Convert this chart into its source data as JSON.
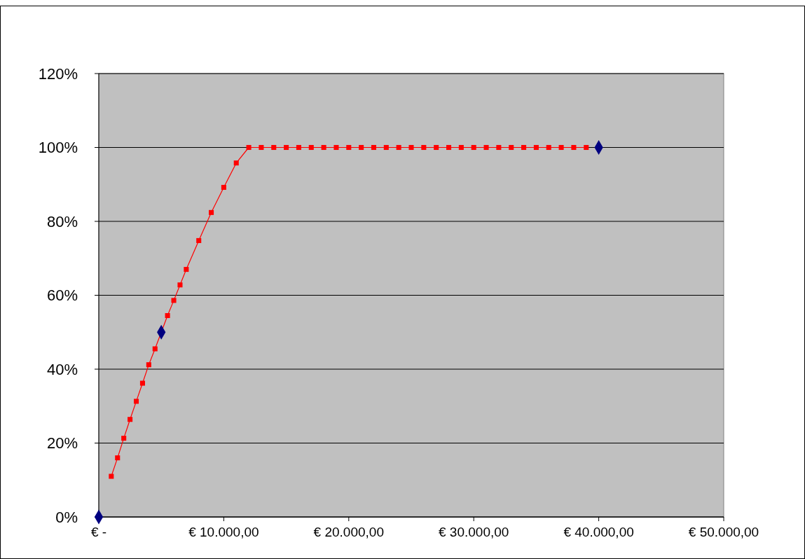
{
  "chart_data": {
    "type": "line",
    "xlim": [
      0,
      50000
    ],
    "ylim": [
      0,
      120
    ],
    "xticks": [
      {
        "value": 0,
        "label": "€ -"
      },
      {
        "value": 10000,
        "label": "€ 10.000,00"
      },
      {
        "value": 20000,
        "label": "€ 20.000,00"
      },
      {
        "value": 30000,
        "label": "€ 30.000,00"
      },
      {
        "value": 40000,
        "label": "€ 40.000,00"
      },
      {
        "value": 50000,
        "label": "€ 50.000,00"
      }
    ],
    "yticks": [
      {
        "value": 0,
        "label": "0%"
      },
      {
        "value": 20,
        "label": "20%"
      },
      {
        "value": 40,
        "label": "40%"
      },
      {
        "value": 60,
        "label": "60%"
      },
      {
        "value": 80,
        "label": "80%"
      },
      {
        "value": 100,
        "label": "100%"
      },
      {
        "value": 120,
        "label": "120%"
      }
    ],
    "grid": "y",
    "series": [
      {
        "color": "#ff0000",
        "marker": "square",
        "x": [
          1000,
          1500,
          2000,
          2500,
          3000,
          3500,
          4000,
          4500,
          5500,
          6000,
          6500,
          7000,
          8000,
          9000,
          10000,
          11000,
          12000,
          13000,
          14000,
          15000,
          16000,
          17000,
          18000,
          19000,
          20000,
          21000,
          22000,
          23000,
          24000,
          25000,
          26000,
          27000,
          28000,
          29000,
          30000,
          31000,
          32000,
          33000,
          34000,
          35000,
          36000,
          37000,
          38000,
          39000
        ],
        "values": [
          11,
          16,
          21.3,
          26.4,
          31.3,
          36.2,
          41.2,
          45.5,
          54.5,
          58.6,
          62.8,
          67,
          74.8,
          82.4,
          89.2,
          95.8,
          100,
          100,
          100,
          100,
          100,
          100,
          100,
          100,
          100,
          100,
          100,
          100,
          100,
          100,
          100,
          100,
          100,
          100,
          100,
          100,
          100,
          100,
          100,
          100,
          100,
          100,
          100,
          100
        ]
      },
      {
        "type": "scatter",
        "color": "#000080",
        "marker": "diamond",
        "x": [
          0,
          5000,
          40000
        ],
        "values": [
          0,
          50,
          100
        ]
      }
    ]
  }
}
